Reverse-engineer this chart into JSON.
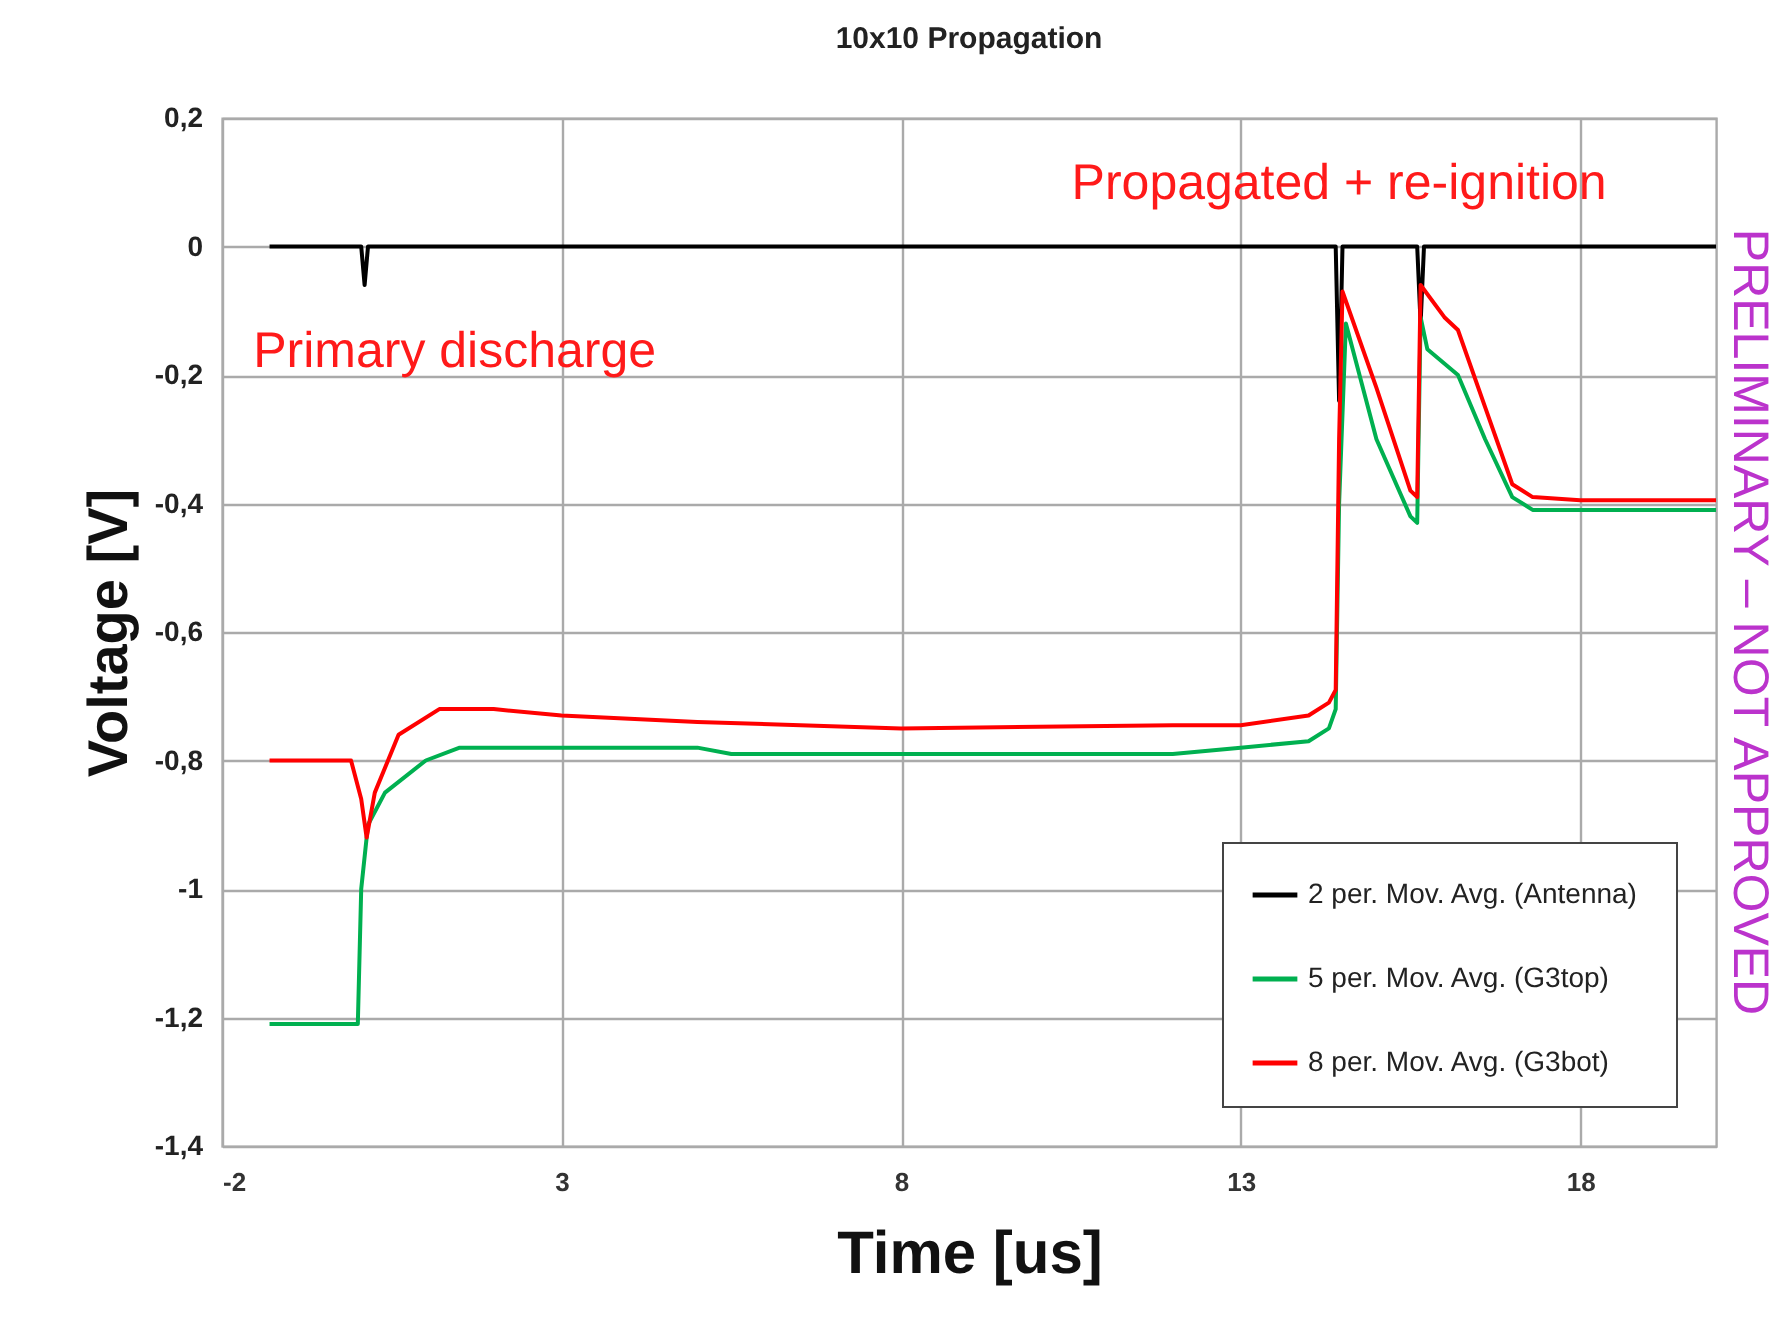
{
  "chart_data": {
    "type": "line",
    "title": "10x10 Propagation",
    "xlabel": "Time [us]",
    "ylabel": "Voltage [V]",
    "xlim": [
      -2,
      20
    ],
    "xticks": [
      -2,
      3,
      8,
      13,
      18
    ],
    "ylim": [
      -1.4,
      0.2
    ],
    "yticks": [
      {
        "value": -1.4,
        "label": "-1,4"
      },
      {
        "value": -1.2,
        "label": "-1,2"
      },
      -1,
      {
        "value": -0.8,
        "label": "-0,8"
      },
      {
        "value": -0.6,
        "label": "-0,6"
      },
      {
        "value": -0.4,
        "label": "-0,4"
      },
      {
        "value": -0.2,
        "label": "-0,2"
      },
      0,
      {
        "value": 0.2,
        "label": "0,2"
      }
    ],
    "grid": true,
    "legend": "bottom right",
    "marker": "none",
    "line_style": "solid",
    "annotations": [
      {
        "text": "Primary discharge",
        "x": 0.1,
        "y": -0.06
      },
      {
        "text": "Propagated + re-ignition",
        "x": 14.45,
        "y": 0
      },
      "PRELIMINARY – NOT APPROVED"
    ],
    "series": [
      {
        "name": "2 per. Mov. Avg.  (Antenna)",
        "color": "#000000",
        "x": [
          -1.3,
          0.05,
          0.1,
          0.15,
          14.4,
          14.45,
          14.5,
          15.6,
          15.65,
          15.7,
          20
        ],
        "values": [
          0,
          0,
          -0.06,
          0,
          0,
          -0.24,
          0,
          0,
          -0.12,
          0,
          0
        ]
      },
      {
        "name": "5 per. Mov. Avg.  (G3top)",
        "color": "#00b050",
        "x": [
          -1.3,
          0.0,
          0.05,
          0.15,
          0.4,
          1.0,
          1.5,
          3,
          5,
          5.5,
          8,
          12,
          13,
          14,
          14.3,
          14.4,
          14.45,
          14.55,
          15.0,
          15.5,
          15.6,
          15.65,
          15.75,
          16.2,
          16.6,
          17.0,
          17.3,
          18,
          20
        ],
        "values": [
          -1.21,
          -1.21,
          -1.0,
          -0.9,
          -0.85,
          -0.8,
          -0.78,
          -0.78,
          -0.78,
          -0.79,
          -0.79,
          -0.79,
          -0.78,
          -0.77,
          -0.75,
          -0.72,
          -0.4,
          -0.12,
          -0.3,
          -0.42,
          -0.43,
          -0.11,
          -0.16,
          -0.2,
          -0.3,
          -0.39,
          -0.41,
          -0.41,
          -0.41
        ]
      },
      {
        "name": "8  per. Mov. Avg.  (G3bot)",
        "color": "#ff0000",
        "x": [
          -1.3,
          -0.1,
          0.05,
          0.13,
          0.25,
          0.6,
          1.2,
          2.0,
          3,
          5,
          8,
          12,
          13,
          14,
          14.3,
          14.4,
          14.45,
          14.5,
          15.0,
          15.5,
          15.6,
          15.65,
          16.0,
          16.2,
          16.6,
          17.0,
          17.3,
          18,
          20
        ],
        "values": [
          -0.8,
          -0.8,
          -0.86,
          -0.92,
          -0.85,
          -0.76,
          -0.72,
          -0.72,
          -0.73,
          -0.74,
          -0.75,
          -0.745,
          -0.745,
          -0.73,
          -0.71,
          -0.69,
          -0.3,
          -0.07,
          -0.22,
          -0.38,
          -0.39,
          -0.06,
          -0.11,
          -0.13,
          -0.25,
          -0.37,
          -0.39,
          -0.395,
          -0.395
        ]
      }
    ]
  }
}
